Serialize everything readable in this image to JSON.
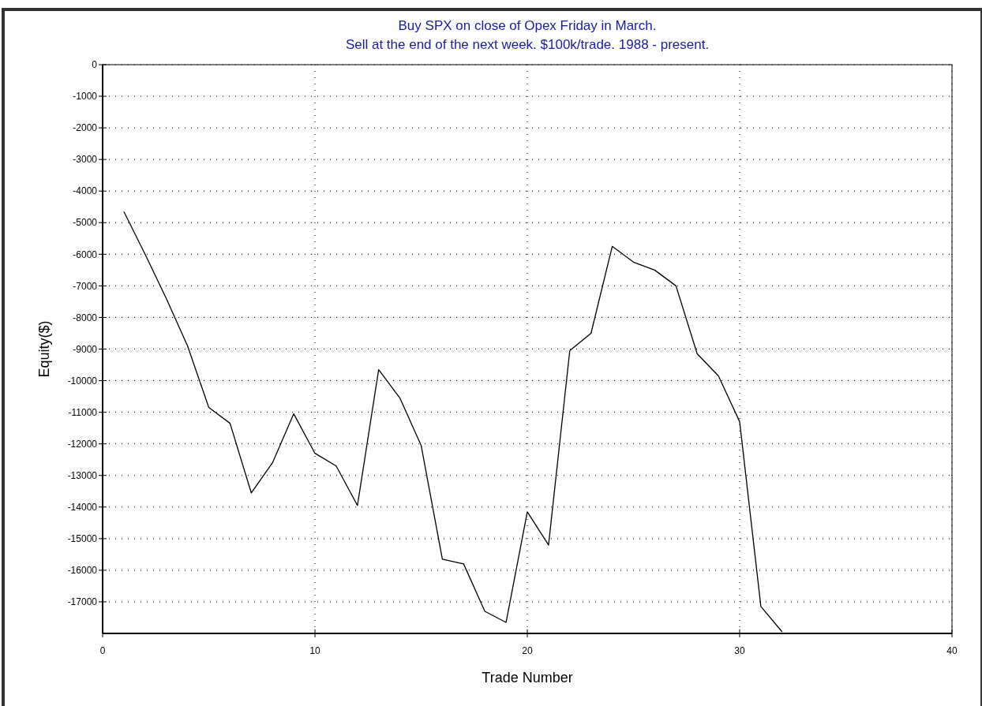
{
  "chart_data": {
    "type": "line",
    "title": "Buy SPX on close of Opex Friday in March.",
    "subtitle": "Sell at the end of the next week. $100k/trade. 1988 - present.",
    "xlabel": "Trade Number",
    "ylabel": "Equity($)",
    "x": [
      1,
      2,
      3,
      4,
      5,
      6,
      7,
      8,
      9,
      10,
      11,
      12,
      13,
      14,
      15,
      16,
      17,
      18,
      19,
      20,
      21,
      22,
      23,
      24,
      25,
      26,
      27,
      28,
      29,
      30,
      31,
      32
    ],
    "series": [
      {
        "color": "#000000",
        "values": [
          -4650,
          -6000,
          -7400,
          -8900,
          -10850,
          -11350,
          -13550,
          -12600,
          -11050,
          -12300,
          -12700,
          -13950,
          -9650,
          -10550,
          -12050,
          -15650,
          -15800,
          -17300,
          -17650,
          -14150,
          -15200,
          -9050,
          -8500,
          -5750,
          -6250,
          -6500,
          -7000,
          -9150,
          -9850,
          -11300,
          -17150,
          -17950
        ]
      }
    ],
    "xlim": [
      0,
      40
    ],
    "xticks": [
      0,
      10,
      20,
      30,
      40
    ],
    "ylim": [
      -18000,
      0
    ],
    "yticks": [
      0,
      -1000,
      -2000,
      -3000,
      -4000,
      -5000,
      -6000,
      -7000,
      -8000,
      -9000,
      -10000,
      -11000,
      -12000,
      -13000,
      -14000,
      -15000,
      -16000,
      -17000
    ],
    "grid": true,
    "marker": "none",
    "line_style": "solid"
  }
}
